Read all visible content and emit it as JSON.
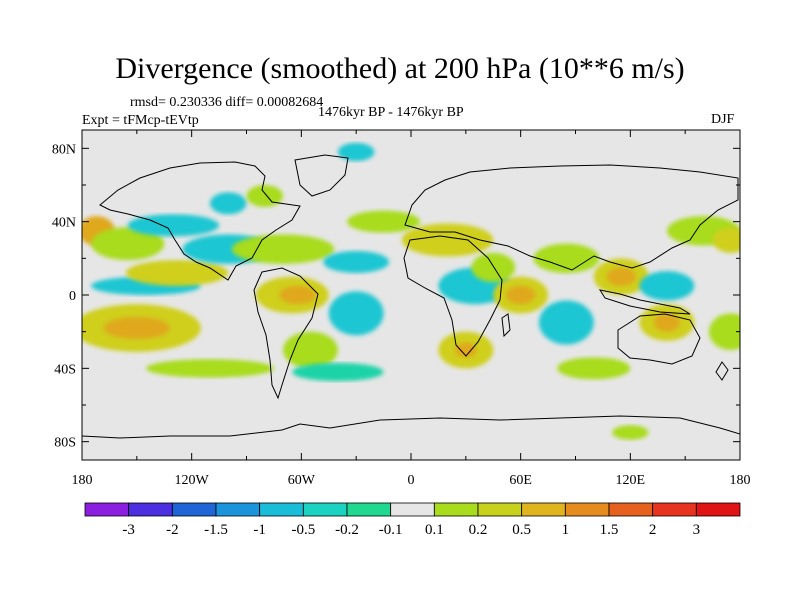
{
  "title": "Divergence (smoothed) at 200 hPa (10**6 m/s)",
  "stats": "rmsd= 0.230336 diff= 0.00082684",
  "period": "1476kyr BP - 1476kyr BP",
  "experiment": "Expt = tFMcp-tEVtp",
  "season": "DJF",
  "map": {
    "projection": "cylindrical-equidistant",
    "lon_range": [
      -180,
      180
    ],
    "lat_range": [
      -90,
      90
    ],
    "lat_ticks": [
      {
        "value": 80,
        "label": "80N"
      },
      {
        "value": 40,
        "label": "40N"
      },
      {
        "value": 0,
        "label": "0"
      },
      {
        "value": -40,
        "label": "40S"
      },
      {
        "value": -80,
        "label": "80S"
      }
    ],
    "lon_ticks": [
      {
        "value": -180,
        "label": "180"
      },
      {
        "value": -120,
        "label": "120W"
      },
      {
        "value": -60,
        "label": "60W"
      },
      {
        "value": 0,
        "label": "0"
      },
      {
        "value": 60,
        "label": "60E"
      },
      {
        "value": 120,
        "label": "120E"
      },
      {
        "value": 180,
        "label": "180"
      }
    ],
    "background_color": "#e6e6e6",
    "blobs": [
      {
        "lon": -172,
        "lat": 35,
        "rlon": 10,
        "rlat": 8,
        "level": 1
      },
      {
        "lon": -155,
        "lat": 28,
        "rlon": 20,
        "rlat": 9,
        "level": 0.2
      },
      {
        "lon": -130,
        "lat": 38,
        "rlon": 25,
        "rlat": 6,
        "level": -0.5
      },
      {
        "lon": -150,
        "lat": -18,
        "rlon": 35,
        "rlat": 13,
        "level": 0.5
      },
      {
        "lon": -150,
        "lat": -18,
        "rlon": 18,
        "rlat": 6,
        "level": 1
      },
      {
        "lon": -145,
        "lat": 5,
        "rlon": 30,
        "rlat": 5,
        "level": -0.5
      },
      {
        "lon": -128,
        "lat": 12,
        "rlon": 28,
        "rlat": 7,
        "level": 0.5
      },
      {
        "lon": -100,
        "lat": 50,
        "rlon": 10,
        "rlat": 6,
        "level": -0.5
      },
      {
        "lon": -80,
        "lat": 54,
        "rlon": 10,
        "rlat": 6,
        "level": 0.2
      },
      {
        "lon": -100,
        "lat": 25,
        "rlon": 25,
        "rlat": 8,
        "level": -0.5
      },
      {
        "lon": -70,
        "lat": 25,
        "rlon": 28,
        "rlat": 8,
        "level": 0.2
      },
      {
        "lon": -65,
        "lat": 0,
        "rlon": 20,
        "rlat": 10,
        "level": 0.5
      },
      {
        "lon": -62,
        "lat": 0,
        "rlon": 10,
        "rlat": 5,
        "level": 1
      },
      {
        "lon": -55,
        "lat": -30,
        "rlon": 15,
        "rlat": 10,
        "level": 0.2
      },
      {
        "lon": -30,
        "lat": -10,
        "rlon": 15,
        "rlat": 12,
        "level": -0.5
      },
      {
        "lon": -30,
        "lat": 18,
        "rlon": 18,
        "rlat": 6,
        "level": -0.5
      },
      {
        "lon": -15,
        "lat": 40,
        "rlon": 20,
        "rlat": 6,
        "level": 0.2
      },
      {
        "lon": -30,
        "lat": 78,
        "rlon": 10,
        "rlat": 5,
        "level": -0.5
      },
      {
        "lon": 20,
        "lat": 30,
        "rlon": 25,
        "rlat": 9,
        "level": 0.5
      },
      {
        "lon": 35,
        "lat": 5,
        "rlon": 20,
        "rlat": 10,
        "level": -0.5
      },
      {
        "lon": 45,
        "lat": 15,
        "rlon": 12,
        "rlat": 8,
        "level": 0.2
      },
      {
        "lon": 60,
        "lat": 0,
        "rlon": 15,
        "rlat": 10,
        "level": 0.5
      },
      {
        "lon": 60,
        "lat": 0,
        "rlon": 8,
        "rlat": 5,
        "level": 1
      },
      {
        "lon": 30,
        "lat": -30,
        "rlon": 15,
        "rlat": 10,
        "level": 0.5
      },
      {
        "lon": 30,
        "lat": -30,
        "rlon": 6,
        "rlat": 4,
        "level": 1
      },
      {
        "lon": 85,
        "lat": -15,
        "rlon": 15,
        "rlat": 12,
        "level": -0.5
      },
      {
        "lon": 85,
        "lat": 20,
        "rlon": 18,
        "rlat": 8,
        "level": 0.2
      },
      {
        "lon": 115,
        "lat": 10,
        "rlon": 15,
        "rlat": 10,
        "level": 0.5
      },
      {
        "lon": 115,
        "lat": 10,
        "rlon": 8,
        "rlat": 5,
        "level": 1
      },
      {
        "lon": 140,
        "lat": 5,
        "rlon": 15,
        "rlat": 8,
        "level": -0.5
      },
      {
        "lon": 140,
        "lat": -15,
        "rlon": 15,
        "rlat": 10,
        "level": 0.5
      },
      {
        "lon": 140,
        "lat": -15,
        "rlon": 7,
        "rlat": 5,
        "level": 1
      },
      {
        "lon": 160,
        "lat": 35,
        "rlon": 20,
        "rlat": 8,
        "level": 0.2
      },
      {
        "lon": 175,
        "lat": 30,
        "rlon": 10,
        "rlat": 7,
        "level": 0.5
      },
      {
        "lon": 175,
        "lat": -20,
        "rlon": 12,
        "rlat": 10,
        "level": 0.2
      },
      {
        "lon": 100,
        "lat": -40,
        "rlon": 20,
        "rlat": 6,
        "level": 0.2
      },
      {
        "lon": -110,
        "lat": -40,
        "rlon": 35,
        "rlat": 5,
        "level": 0.2
      },
      {
        "lon": -40,
        "lat": -42,
        "rlon": 25,
        "rlat": 5,
        "level": -0.2
      },
      {
        "lon": 120,
        "lat": -75,
        "rlon": 10,
        "rlat": 4,
        "level": 0.2
      }
    ]
  },
  "colorbar": {
    "labels": [
      "-3",
      "-2",
      "-1.5",
      "-1",
      "-0.5",
      "-0.2",
      "-0.1",
      "0.1",
      "0.2",
      "0.5",
      "1",
      "1.5",
      "2",
      "3"
    ],
    "colors": [
      "#8b1fe0",
      "#4b2fe0",
      "#1f65d6",
      "#1b94dc",
      "#19bdd8",
      "#1bd3c0",
      "#20d890",
      "#e6e6e6",
      "#a8dc1c",
      "#c8d21c",
      "#e0b41e",
      "#e68b1e",
      "#e6601e",
      "#e6341e",
      "#e01414"
    ]
  }
}
